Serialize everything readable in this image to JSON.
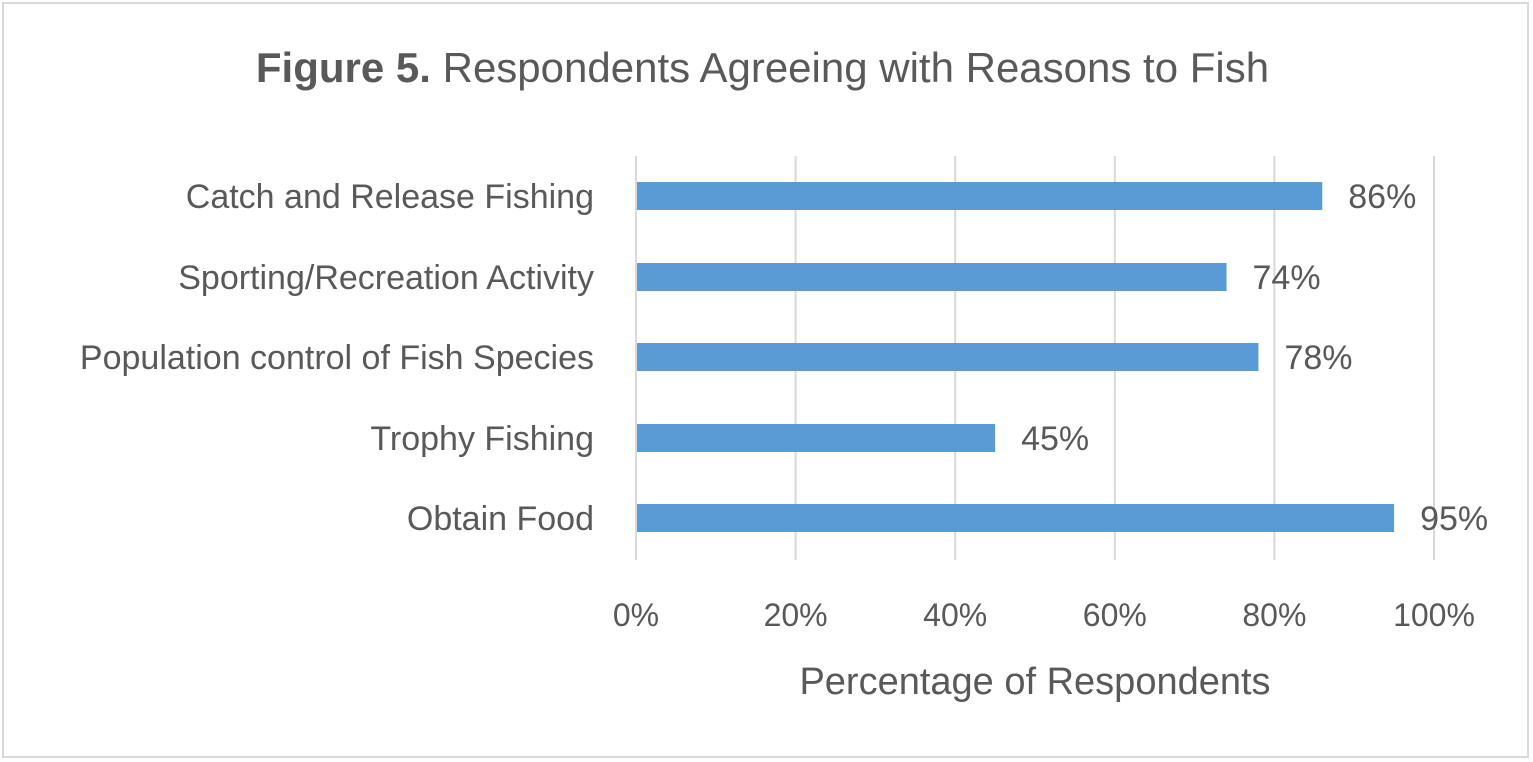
{
  "chart_data": {
    "type": "bar",
    "orientation": "horizontal",
    "title_bold": "Figure 5.",
    "title_rest": "Respondents Agreeing with Reasons to Fish",
    "xlabel": "Percentage of Respondents",
    "ylabel": "",
    "xlim": [
      0,
      100
    ],
    "x_ticks": [
      "0%",
      "20%",
      "40%",
      "60%",
      "80%",
      "100%"
    ],
    "x_tick_values": [
      0,
      20,
      40,
      60,
      80,
      100
    ],
    "categories": [
      "Catch and Release Fishing",
      "Sporting/Recreation Activity",
      "Population control of Fish Species",
      "Trophy Fishing",
      "Obtain Food"
    ],
    "values": [
      86,
      74,
      78,
      45,
      95
    ],
    "data_labels": [
      "86%",
      "74%",
      "78%",
      "45%",
      "95%"
    ],
    "bar_color": "#5b9bd5",
    "grid": true,
    "legend": "none"
  }
}
